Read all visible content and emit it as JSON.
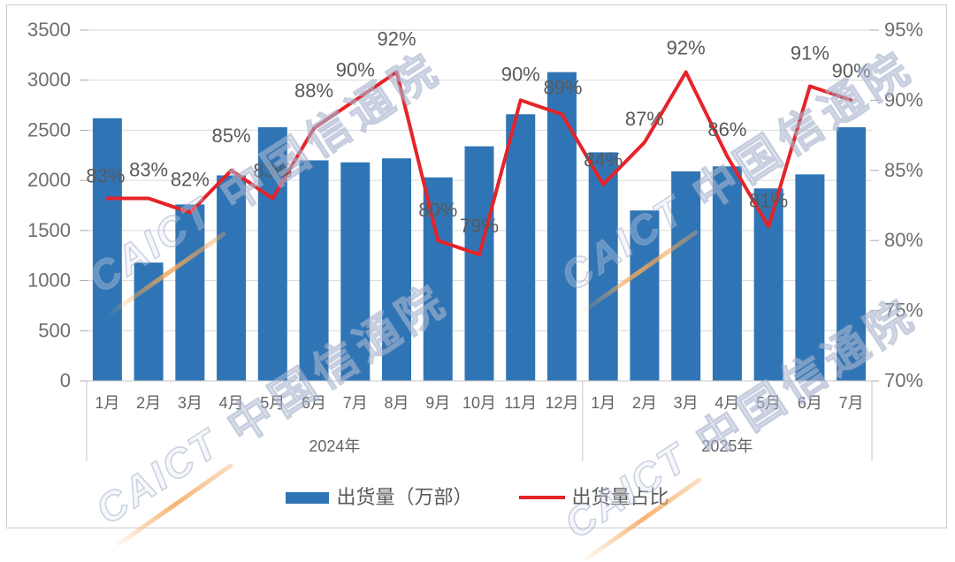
{
  "watermark": {
    "brand": "CAICT",
    "brand_cn": "中国信通院"
  },
  "legend": {
    "items": [
      {
        "label": "出货量（万部）",
        "swatch": "bar",
        "color": "#2f75b5"
      },
      {
        "label": "出货量占比",
        "swatch": "line",
        "color": "#e62329"
      }
    ]
  },
  "chart_data": {
    "type": "bar+line combo",
    "grid": true,
    "legend_position": "bottom",
    "groups": [
      {
        "year_label": "2024年",
        "months": [
          "1月",
          "2月",
          "3月",
          "4月",
          "5月",
          "6月",
          "7月",
          "8月",
          "9月",
          "10月",
          "11月",
          "12月"
        ]
      },
      {
        "year_label": "2025年",
        "months": [
          "1月",
          "2月",
          "3月",
          "4月",
          "5月",
          "6月",
          "7月"
        ]
      }
    ],
    "series": [
      {
        "name": "出货量（万部）",
        "type": "bar",
        "axis": "left",
        "color": "#2f75b5",
        "values": [
          2620,
          1180,
          1760,
          2050,
          2530,
          2200,
          2180,
          2220,
          2030,
          2340,
          2660,
          3080,
          2280,
          1700,
          2090,
          2140,
          1920,
          2060,
          2530
        ]
      },
      {
        "name": "出货量占比",
        "type": "line",
        "axis": "right",
        "color": "#e62329",
        "values_percent": [
          83,
          83,
          82,
          85,
          83,
          88,
          90,
          92,
          80,
          79,
          90,
          89,
          84,
          87,
          92,
          86,
          81,
          91,
          90
        ],
        "point_labels": [
          "83%",
          "83%",
          "82%",
          "85%",
          "83%",
          "88%",
          "90%",
          "92%",
          "80%",
          "79%",
          "90%",
          "89%",
          "84%",
          "87%",
          "92%",
          "86%",
          "81%",
          "91%",
          "90%"
        ]
      }
    ],
    "left_axis": {
      "min": 0,
      "max": 3500,
      "step": 500,
      "tick_labels": [
        "3500",
        "3000",
        "2500",
        "2000",
        "1500",
        "1000",
        "500",
        "0"
      ]
    },
    "right_axis": {
      "min": 70,
      "max": 95,
      "step": 5,
      "tick_labels": [
        "95%",
        "90%",
        "85%",
        "80%",
        "75%",
        "70%"
      ]
    }
  }
}
